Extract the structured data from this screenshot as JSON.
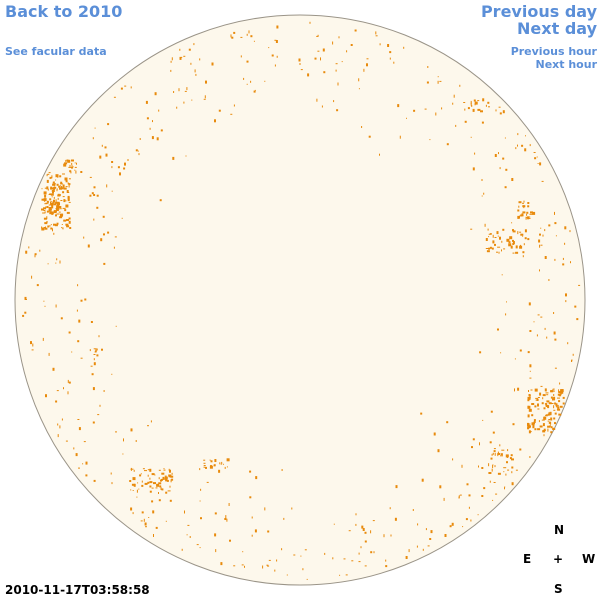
{
  "nav": {
    "back_label": "Back to 2010",
    "facular_label": "See facular data",
    "prev_day_label": "Previous day",
    "next_day_label": "Next day",
    "prev_hour_label": "Previous hour",
    "next_hour_label": "Next hour"
  },
  "timestamp": "2010-11-17T03:58:58",
  "compass": {
    "north": "N",
    "east": "E",
    "center": "+",
    "west": "W",
    "south": "S"
  },
  "colors": {
    "link": "#5b8fd8",
    "disk_fill": "#fdf8ec",
    "disk_stroke": "#9a9488",
    "feature": "#e88a0c"
  }
}
